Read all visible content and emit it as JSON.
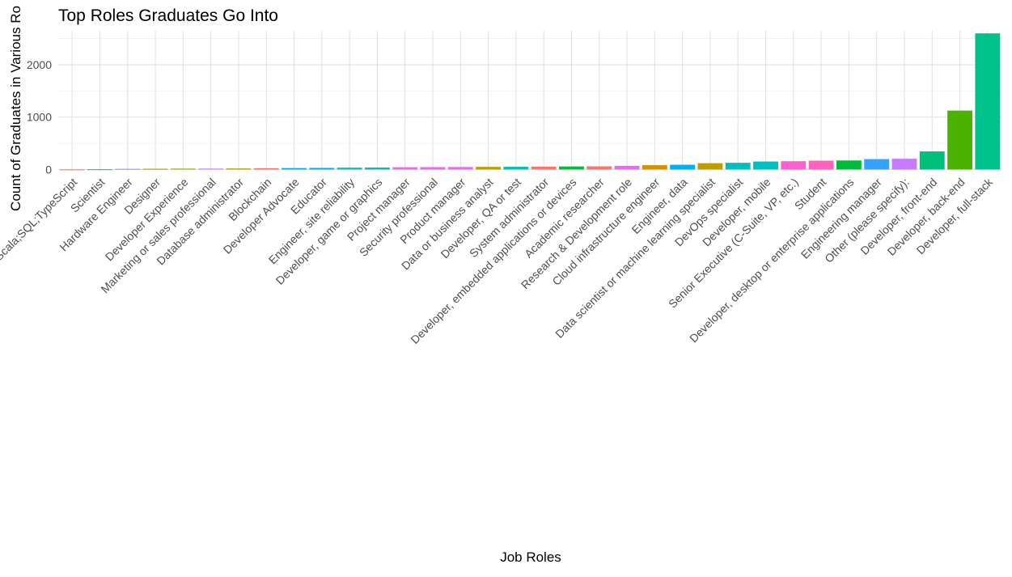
{
  "chart_data": {
    "type": "bar",
    "title": "Top Roles Graduates Go Into",
    "xlabel": "Job Roles",
    "ylabel": "Count of Graduates in Various Ro",
    "ylim": [
      -40,
      2650
    ],
    "yticks": [
      0,
      1000,
      2000
    ],
    "grid": true,
    "legend": "none",
    "categories": [
      "Scala;SQL;TypeScript",
      "Scientist",
      "Hardware Engineer",
      "Designer",
      "Developer Experience",
      "Marketing or sales professional",
      "Database administrator",
      "Blockchain",
      "Developer Advocate",
      "Educator",
      "Engineer, site reliability",
      "Developer, game or graphics",
      "Project manager",
      "Security professional",
      "Product manager",
      "Data or business analyst",
      "Developer, QA or test",
      "System administrator",
      "Developer, embedded applications or devices",
      "Academic researcher",
      "Research & Development role",
      "Cloud infrastructure engineer",
      "Engineer, data",
      "Data scientist or machine learning specialist",
      "DevOps specialist",
      "Developer, mobile",
      "Senior Executive (C-Suite, VP, etc.)",
      "Student",
      "Developer, desktop or enterprise applications",
      "Engineering manager",
      "Other (please specify):",
      "Developer, front-end",
      "Developer, back-end",
      "Developer, full-stack"
    ],
    "values": [
      1,
      3,
      12,
      14,
      16,
      17,
      19,
      24,
      27,
      30,
      35,
      37,
      43,
      45,
      47,
      50,
      52,
      55,
      57,
      60,
      70,
      82,
      90,
      120,
      128,
      152,
      158,
      168,
      172,
      198,
      205,
      345,
      1125,
      2600
    ],
    "colors": [
      "#F8766D",
      "#00BF7D",
      "#8B93FF",
      "#A3A500",
      "#7CAE00",
      "#B983FF",
      "#A3A500",
      "#F8766D",
      "#00B0F6",
      "#00B0F6",
      "#00BFC4",
      "#00BFC4",
      "#E76BF3",
      "#E76BF3",
      "#E76BF3",
      "#C49A00",
      "#00BFC4",
      "#F8766D",
      "#00BA38",
      "#F8766D",
      "#E76BF3",
      "#D89000",
      "#00B0F6",
      "#C49A00",
      "#00BFC4",
      "#00BFC4",
      "#FD61D1",
      "#FF62BC",
      "#00BA38",
      "#35A2FF",
      "#C77CFF",
      "#00BF7D",
      "#4CB200",
      "#00C08B"
    ]
  }
}
